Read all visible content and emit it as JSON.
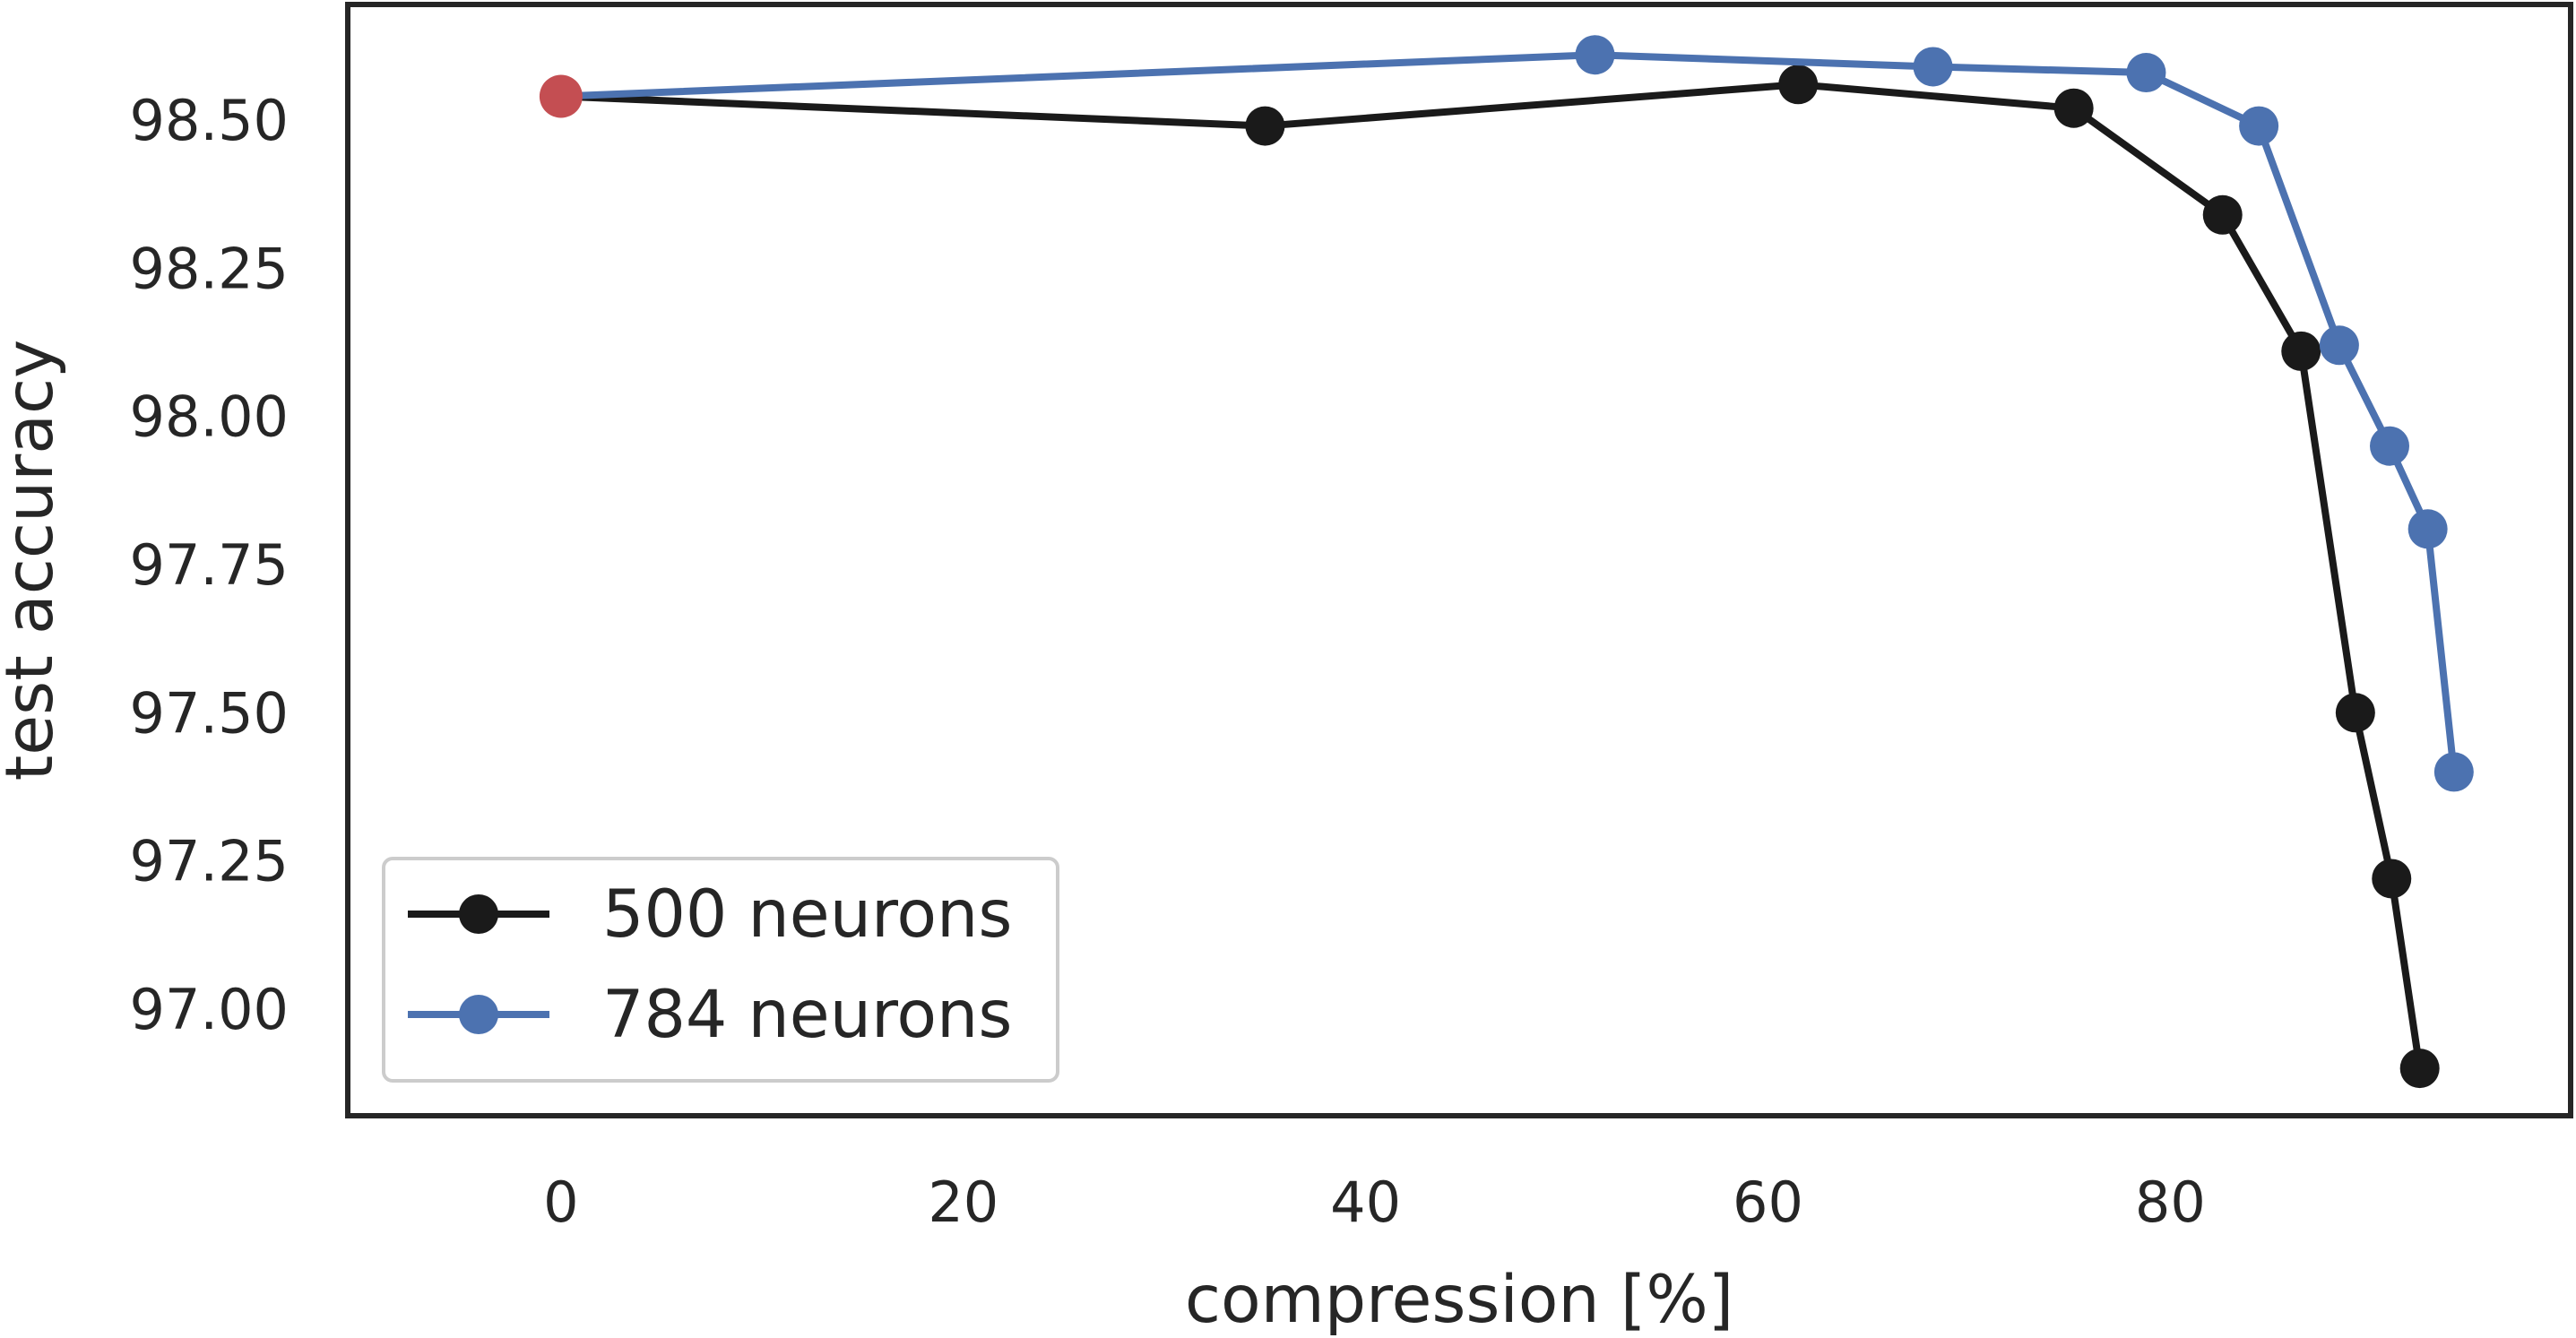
{
  "chart_data": {
    "type": "line",
    "title": "",
    "xlabel": "compression [%]",
    "ylabel": "test accuracy",
    "xlim": [
      -10.6,
      99.9
    ],
    "ylim": [
      96.82,
      98.695
    ],
    "xticks": [
      0,
      20,
      40,
      60,
      80
    ],
    "xtick_labels": [
      "0",
      "20",
      "40",
      "60",
      "80"
    ],
    "yticks": [
      97.0,
      97.25,
      97.5,
      97.75,
      98.0,
      98.25,
      98.5
    ],
    "ytick_labels": [
      "97.00",
      "97.25",
      "97.50",
      "97.75",
      "98.00",
      "98.25",
      "98.50"
    ],
    "grid": false,
    "legend_position": "lower-left",
    "series": [
      {
        "name": "500 neurons",
        "color": "#1a1a1a",
        "x": [
          0,
          35.0,
          61.5,
          75.2,
          82.6,
          86.5,
          89.2,
          91.0,
          92.4
        ],
        "y": [
          98.54,
          98.49,
          98.56,
          98.52,
          98.34,
          98.11,
          97.5,
          97.22,
          96.9
        ]
      },
      {
        "name": "784 neurons",
        "color": "#4c72b0",
        "x": [
          0,
          51.4,
          68.2,
          78.8,
          84.4,
          88.4,
          90.9,
          92.8,
          94.1
        ],
        "y": [
          98.54,
          98.61,
          98.59,
          98.58,
          98.49,
          98.12,
          97.95,
          97.81,
          97.4
        ]
      }
    ],
    "highlight_point": {
      "x": 0,
      "y": 98.54,
      "color": "#c44e52"
    }
  }
}
